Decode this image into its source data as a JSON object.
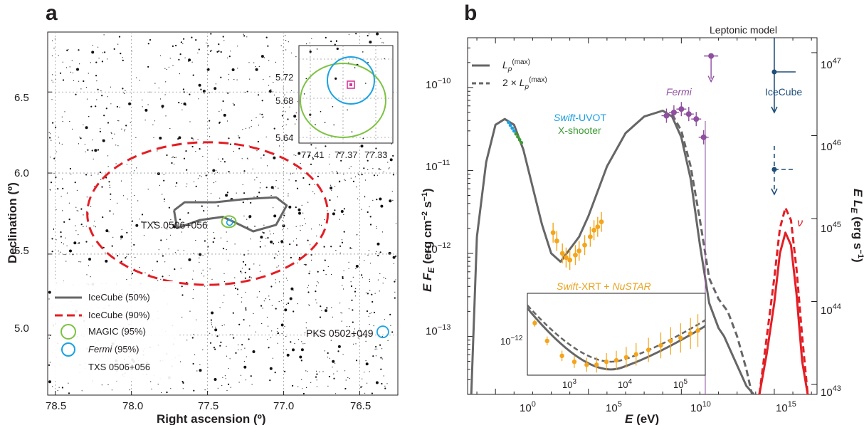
{
  "panels": {
    "a": "a",
    "b": "b"
  },
  "chart_data": [
    {
      "type": "scatter",
      "panel": "a",
      "xlabel": "Right ascension (º)",
      "ylabel": "Declination (º)",
      "xlim": [
        78.55,
        76.25
      ],
      "ylim": [
        4.63,
        6.87
      ],
      "x_ticks": [
        "78.5",
        "78.0",
        "77.5",
        "77.0",
        "76.5"
      ],
      "y_ticks": [
        "5.0",
        "5.5",
        "6.0",
        "6.5"
      ],
      "grid": true,
      "sources": [
        {
          "name": "TXS 0506+056",
          "ra": 77.36,
          "dec": 5.69
        },
        {
          "name": "PKS 0502+049",
          "ra": 76.33,
          "dec": 5.02
        }
      ],
      "contours": [
        {
          "name": "IceCube (50%)",
          "color": "#666666",
          "style": "solid",
          "path_pts": [
            [
              77.72,
              5.77
            ],
            [
              77.65,
              5.82
            ],
            [
              77.45,
              5.82
            ],
            [
              77.25,
              5.84
            ],
            [
              77.05,
              5.85
            ],
            [
              76.98,
              5.8
            ],
            [
              77.05,
              5.68
            ],
            [
              77.2,
              5.64
            ],
            [
              77.33,
              5.7
            ],
            [
              77.4,
              5.73
            ],
            [
              77.55,
              5.71
            ],
            [
              77.7,
              5.66
            ],
            [
              77.72,
              5.77
            ]
          ]
        },
        {
          "name": "IceCube (90%)",
          "color": "#e31e25",
          "style": "dashed",
          "center": [
            77.5,
            5.75
          ],
          "radii": [
            0.79,
            0.44
          ]
        },
        {
          "name": "MAGIC (95%)",
          "color": "#7cc242",
          "style": "solid",
          "center": [
            77.36,
            5.7
          ],
          "radii": [
            0.04,
            0.035
          ]
        },
        {
          "name": "Fermi (95%)",
          "color": "#1ba1e2",
          "style": "solid",
          "center": [
            77.355,
            5.695
          ],
          "radii": [
            0.02,
            0.02
          ]
        }
      ],
      "legend": [
        {
          "label": "IceCube (50%)",
          "marker": "solid-line",
          "color": "#666666"
        },
        {
          "label": "IceCube (90%)",
          "marker": "dashed-line",
          "color": "#e31e25"
        },
        {
          "label": "MAGIC (95%)",
          "marker": "circle",
          "color": "#7cc242"
        },
        {
          "italic": "Fermi",
          "label": " (95%)",
          "marker": "circle",
          "color": "#1ba1e2"
        },
        {
          "label": "TXS 0506+056",
          "marker": "none",
          "color": "#231f20"
        }
      ],
      "legend_position": "bottom-left",
      "inset": {
        "xlim": [
          77.42,
          77.32
        ],
        "ylim": [
          5.63,
          5.73
        ],
        "x_ticks": [
          "77.41",
          "77.37",
          "77.33"
        ],
        "y_ticks": [
          "5.72",
          "5.68",
          "5.64"
        ]
      }
    },
    {
      "type": "line",
      "panel": "b",
      "xlabel": "E (eV)",
      "ylabel_left": "E F_E (erg cm⁻² s⁻¹)",
      "ylabel_right": "E L_E (erg s⁻¹)",
      "x_scale": "log",
      "y_scale": "log",
      "xlim_log10": [
        -1.5,
        17.3
      ],
      "ylim_log10": [
        -13.7,
        -9.4
      ],
      "x_ticks": [
        {
          "exp": "0",
          "log": 0
        },
        {
          "exp": "5",
          "log": 5
        },
        {
          "exp": "10",
          "log": 10
        },
        {
          "exp": "15",
          "log": 15
        }
      ],
      "y_ticks_left": [
        {
          "exp": "−13",
          "log": -13
        },
        {
          "exp": "−12",
          "log": -12
        },
        {
          "exp": "−11",
          "log": -11
        },
        {
          "exp": "−10",
          "log": -10
        }
      ],
      "y_ticks_right": [
        {
          "exp": "43",
          "log": -13.58
        },
        {
          "exp": "44",
          "log": -12.58
        },
        {
          "exp": "45",
          "log": -11.58
        },
        {
          "exp": "46",
          "log": -10.58
        },
        {
          "exp": "47",
          "log": -9.58
        }
      ],
      "series": [
        {
          "name": "L_p^(max)",
          "color": "#666666",
          "style": "solid",
          "x_log": [
            -1.3,
            -1.0,
            -0.5,
            0.0,
            0.5,
            1.0,
            1.5,
            2.0,
            2.5,
            3.0,
            3.5,
            4.0,
            4.5,
            5.0,
            6.0,
            7.0,
            8.0,
            9.0,
            9.5,
            10.0,
            10.5,
            11.0,
            11.5,
            12.0,
            12.3,
            12.8,
            13.5,
            13.9
          ],
          "y_log": [
            -13.7,
            -11.8,
            -10.9,
            -10.45,
            -10.38,
            -10.45,
            -10.75,
            -11.2,
            -11.65,
            -12.0,
            -12.1,
            -11.95,
            -11.8,
            -11.55,
            -10.95,
            -10.55,
            -10.35,
            -10.28,
            -10.35,
            -10.6,
            -11.1,
            -11.9,
            -12.6,
            -12.9,
            -13.0,
            -13.25,
            -13.6,
            -13.7
          ]
        },
        {
          "name": "2 × L_p^(max)",
          "color": "#666666",
          "style": "dashed",
          "x_log": [
            9.5,
            10.0,
            10.5,
            11.0,
            11.5,
            12.0,
            12.5,
            13.0,
            13.5,
            13.8
          ],
          "y_log": [
            -10.32,
            -10.52,
            -10.95,
            -11.6,
            -12.3,
            -12.55,
            -12.7,
            -13.0,
            -13.4,
            -13.7
          ]
        },
        {
          "name": "ν",
          "color": "#e31e25",
          "style": "solid",
          "x_log": [
            14.2,
            14.6,
            15.0,
            15.3,
            15.6,
            15.9,
            16.2,
            16.5,
            16.8
          ],
          "y_log": [
            -13.7,
            -13.2,
            -12.6,
            -12.0,
            -11.75,
            -11.9,
            -12.5,
            -13.3,
            -13.7
          ]
        },
        {
          "name": "ν (2×)",
          "color": "#e31e25",
          "style": "dashed",
          "x_log": [
            14.2,
            14.6,
            15.0,
            15.3,
            15.6,
            15.9,
            16.2,
            16.5,
            16.8
          ],
          "y_log": [
            -13.7,
            -13.0,
            -12.3,
            -11.7,
            -11.45,
            -11.6,
            -12.2,
            -13.0,
            -13.7
          ]
        }
      ],
      "annotations": [
        {
          "text": "Leptonic model"
        },
        {
          "text": "IceCube"
        },
        {
          "italic": "Fermi",
          "text": ""
        },
        {
          "italic": "Swift",
          "text": "-UVOT"
        },
        {
          "text": "X-shooter"
        },
        {
          "italic": "Swift",
          "text": "-XRT + "
        },
        {
          "italic": "NuSTAR",
          "text": ""
        },
        {
          "text": "ν"
        }
      ],
      "legend": [
        {
          "label": "L_p^(max)",
          "style": "solid"
        },
        {
          "label": "2 × L_p^(max)",
          "style": "dashed"
        }
      ],
      "legend_position": "top-left",
      "inset": {
        "x_ticks": [
          {
            "exp": "3",
            "log": 3
          },
          {
            "exp": "4",
            "log": 4
          },
          {
            "exp": "5",
            "log": 5
          }
        ],
        "y_ticks": [
          {
            "exp": "−12",
            "log": -12
          }
        ]
      }
    }
  ]
}
